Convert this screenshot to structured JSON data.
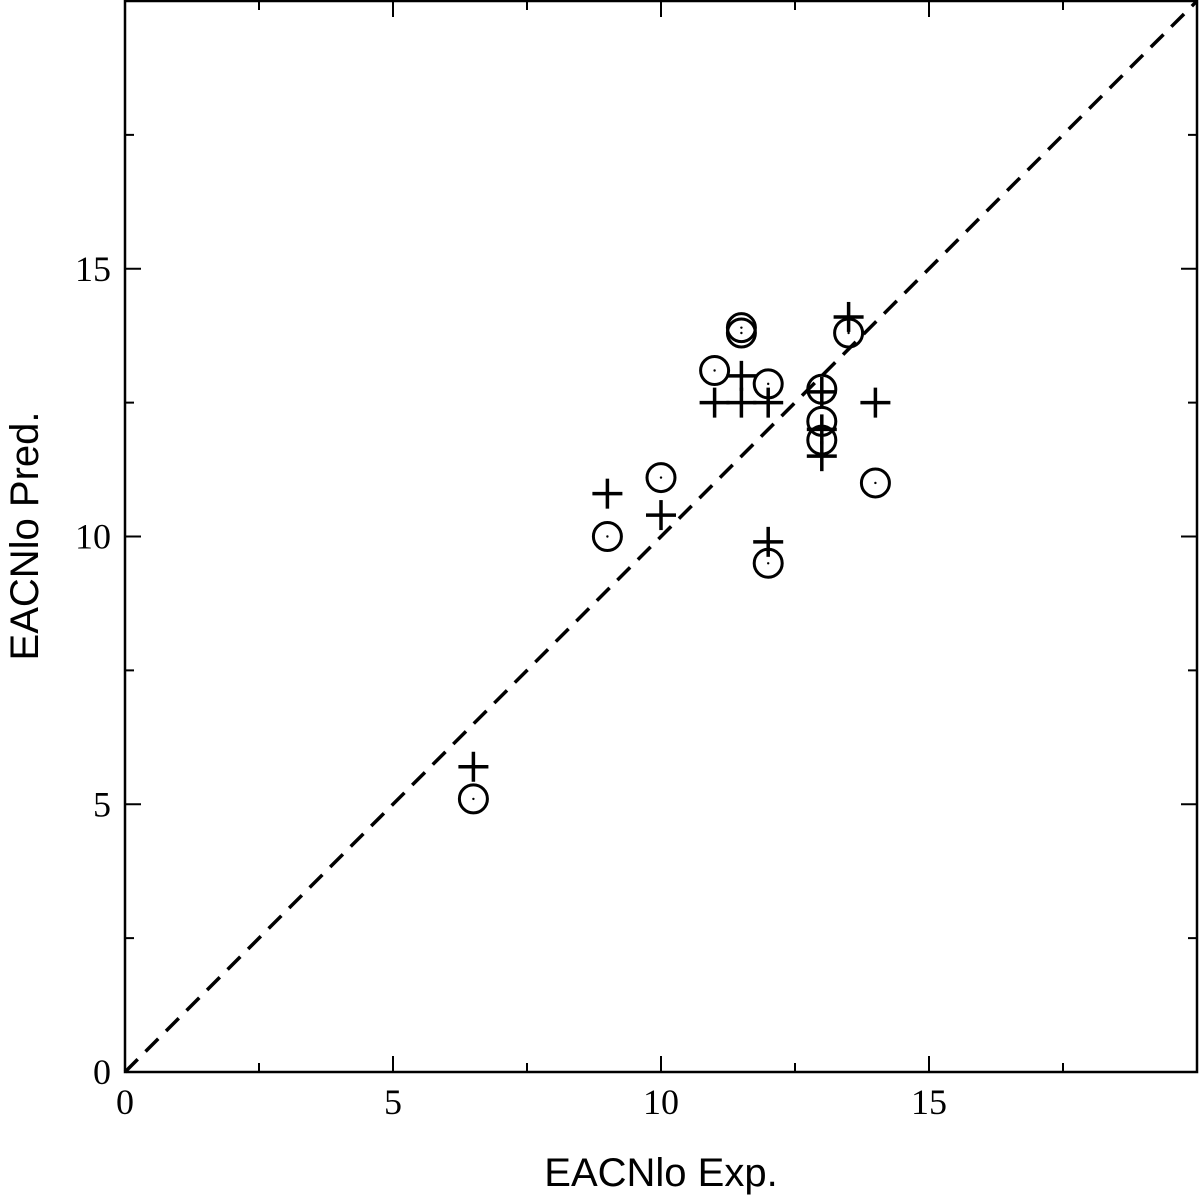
{
  "chart_data": {
    "type": "scatter",
    "title": "",
    "xlabel": "EACNlo Exp.",
    "ylabel": "EACNlo Pred.",
    "xlim": [
      0,
      20
    ],
    "ylim": [
      0,
      20
    ],
    "x_major_ticks": [
      0,
      5,
      10,
      15
    ],
    "x_tick_labels": [
      "0",
      "5",
      "10",
      "15"
    ],
    "x_minor_ticks": [
      2.5,
      7.5,
      12.5,
      17.5
    ],
    "y_major_ticks": [
      0,
      5,
      10,
      15
    ],
    "y_tick_labels": [
      "0",
      "5",
      "10",
      "15"
    ],
    "y_minor_ticks": [
      2.5,
      7.5,
      12.5,
      17.5
    ],
    "grid": false,
    "legend": false,
    "reference_line": {
      "style": "dashed",
      "from": [
        0,
        0
      ],
      "to": [
        20,
        20
      ],
      "color": "#000000"
    },
    "series": [
      {
        "marker": "plus",
        "color": "#000000",
        "points": [
          [
            6.5,
            5.7
          ],
          [
            9.0,
            10.8
          ],
          [
            10.0,
            10.4
          ],
          [
            11.0,
            12.5
          ],
          [
            11.5,
            12.5
          ],
          [
            11.5,
            13.0
          ],
          [
            12.0,
            12.5
          ],
          [
            12.0,
            9.9
          ],
          [
            13.0,
            12.7
          ],
          [
            13.0,
            12.0
          ],
          [
            13.0,
            11.5
          ],
          [
            13.5,
            14.1
          ],
          [
            14.0,
            12.5
          ]
        ]
      },
      {
        "marker": "circle",
        "color": "#000000",
        "points": [
          [
            6.5,
            5.1
          ],
          [
            9.0,
            10.0
          ],
          [
            10.0,
            11.1
          ],
          [
            11.0,
            13.1
          ],
          [
            11.5,
            13.9
          ],
          [
            11.5,
            13.8
          ],
          [
            12.0,
            12.85
          ],
          [
            12.0,
            9.5
          ],
          [
            13.0,
            12.75
          ],
          [
            13.0,
            12.15
          ],
          [
            13.0,
            11.8
          ],
          [
            13.5,
            13.8
          ],
          [
            14.0,
            11.0
          ]
        ]
      }
    ]
  }
}
